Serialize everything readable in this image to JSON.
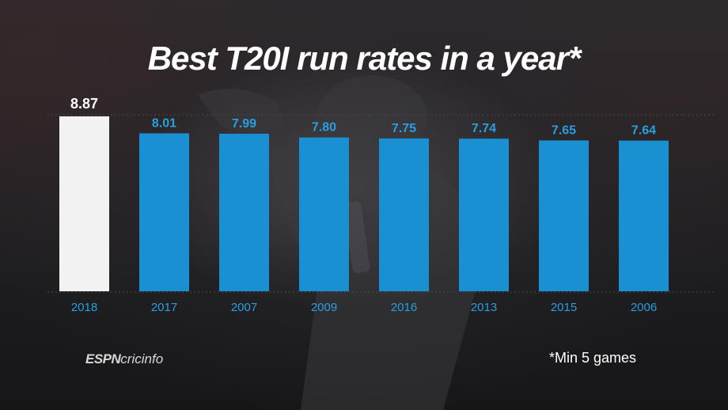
{
  "brand": {
    "espn": "ESPN",
    "cricinfo": "cricinfo"
  },
  "footnote": "*Min 5 games",
  "colors": {
    "highlight": "#f2f2f2",
    "bar": "#1a8fd1",
    "value_highlight": "#ffffff",
    "value": "#2a9ee0",
    "axis_label": "#2a9ee0"
  },
  "chart_data": {
    "type": "bar",
    "title": "Best T20I run rates in a year*",
    "categories": [
      "2018",
      "2017",
      "2007",
      "2009",
      "2016",
      "2013",
      "2015",
      "2006"
    ],
    "values": [
      8.87,
      8.01,
      7.99,
      7.8,
      7.75,
      7.74,
      7.65,
      7.64
    ],
    "value_labels": [
      "8.87",
      "8.01",
      "7.99",
      "7.80",
      "7.75",
      "7.74",
      "7.65",
      "7.64"
    ],
    "highlight_index": 0,
    "ylim": [
      0,
      8.87
    ],
    "grid": false,
    "legend": "none"
  }
}
